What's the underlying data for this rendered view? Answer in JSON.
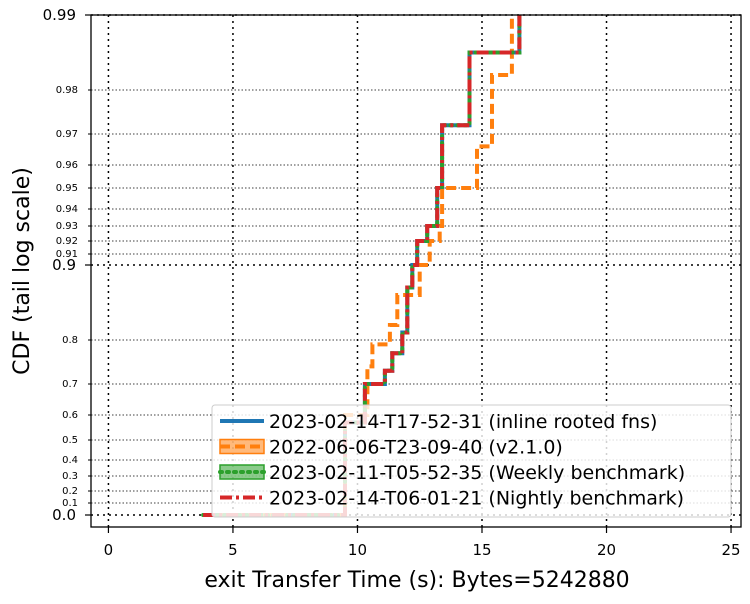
{
  "chart_data": {
    "type": "line",
    "xlabel": "exit Transfer Time (s): Bytes=5242880",
    "ylabel": "CDF (tail log scale)",
    "xlim": [
      -0.7,
      25.4
    ],
    "x_ticks": [
      "0",
      "5",
      "10",
      "15",
      "20",
      "25"
    ],
    "y_major_ticks": [
      {
        "label": "0.0",
        "value": 0.0
      },
      {
        "label": "0.9",
        "value": 0.9
      },
      {
        "label": "0.99",
        "value": 0.99
      }
    ],
    "y_minor_ticks": [
      {
        "label": "0.1",
        "value": 0.1
      },
      {
        "label": "0.2",
        "value": 0.2
      },
      {
        "label": "0.3",
        "value": 0.3
      },
      {
        "label": "0.4",
        "value": 0.4
      },
      {
        "label": "0.5",
        "value": 0.5
      },
      {
        "label": "0.6",
        "value": 0.6
      },
      {
        "label": "0.7",
        "value": 0.7
      },
      {
        "label": "0.8",
        "value": 0.8
      },
      {
        "label": "0.91",
        "value": 0.91
      },
      {
        "label": "0.92",
        "value": 0.92
      },
      {
        "label": "0.93",
        "value": 0.93
      },
      {
        "label": "0.94",
        "value": 0.94
      },
      {
        "label": "0.95",
        "value": 0.95
      },
      {
        "label": "0.96",
        "value": 0.96
      },
      {
        "label": "0.97",
        "value": 0.97
      },
      {
        "label": "0.98",
        "value": 0.98
      }
    ],
    "grid": true,
    "legend_position": "lower-right",
    "series": [
      {
        "name": "2023-02-14-T17-52-31 (inline rooted fns)",
        "color": "#1f77b4",
        "style": "solid",
        "points": [
          [
            3.8,
            0.0
          ],
          [
            9.5,
            0.57
          ],
          [
            10.3,
            0.7
          ],
          [
            11.1,
            0.73
          ],
          [
            11.4,
            0.77
          ],
          [
            11.8,
            0.81
          ],
          [
            12.0,
            0.87
          ],
          [
            12.2,
            0.9
          ],
          [
            12.4,
            0.92
          ],
          [
            12.8,
            0.93
          ],
          [
            13.2,
            0.95
          ],
          [
            13.4,
            0.972
          ],
          [
            14.5,
            0.985
          ],
          [
            16.5,
            0.99
          ]
        ]
      },
      {
        "name": "2022-06-06-T23-09-40 (v2.1.0)",
        "color": "#ff7f0e",
        "style": "dashed",
        "points": [
          [
            3.8,
            0.0
          ],
          [
            9.5,
            0.6
          ],
          [
            10.4,
            0.74
          ],
          [
            10.6,
            0.79
          ],
          [
            11.3,
            0.82
          ],
          [
            11.6,
            0.86
          ],
          [
            12.5,
            0.9
          ],
          [
            12.9,
            0.92
          ],
          [
            13.3,
            0.93
          ],
          [
            13.4,
            0.95
          ],
          [
            14.8,
            0.966
          ],
          [
            15.4,
            0.982
          ],
          [
            16.2,
            0.99
          ]
        ]
      },
      {
        "name": "2023-02-11-T05-52-35 (Weekly benchmark)",
        "color": "#2ca02c",
        "style": "dotted",
        "points": [
          [
            3.8,
            0.0
          ],
          [
            9.5,
            0.57
          ],
          [
            10.3,
            0.7
          ],
          [
            11.1,
            0.73
          ],
          [
            11.4,
            0.77
          ],
          [
            11.8,
            0.81
          ],
          [
            12.0,
            0.87
          ],
          [
            12.2,
            0.9
          ],
          [
            12.4,
            0.92
          ],
          [
            12.8,
            0.93
          ],
          [
            13.2,
            0.95
          ],
          [
            13.4,
            0.972
          ],
          [
            14.5,
            0.985
          ],
          [
            16.5,
            0.99
          ]
        ]
      },
      {
        "name": "2023-02-14-T06-01-21 (Nightly benchmark)",
        "color": "#d62728",
        "style": "dashdot",
        "points": [
          [
            3.8,
            0.0
          ],
          [
            9.5,
            0.57
          ],
          [
            10.3,
            0.7
          ],
          [
            11.1,
            0.73
          ],
          [
            11.4,
            0.77
          ],
          [
            11.8,
            0.81
          ],
          [
            12.0,
            0.87
          ],
          [
            12.2,
            0.9
          ],
          [
            12.4,
            0.92
          ],
          [
            12.8,
            0.93
          ],
          [
            13.2,
            0.95
          ],
          [
            13.4,
            0.972
          ],
          [
            14.5,
            0.985
          ],
          [
            16.5,
            0.99
          ]
        ]
      }
    ]
  }
}
